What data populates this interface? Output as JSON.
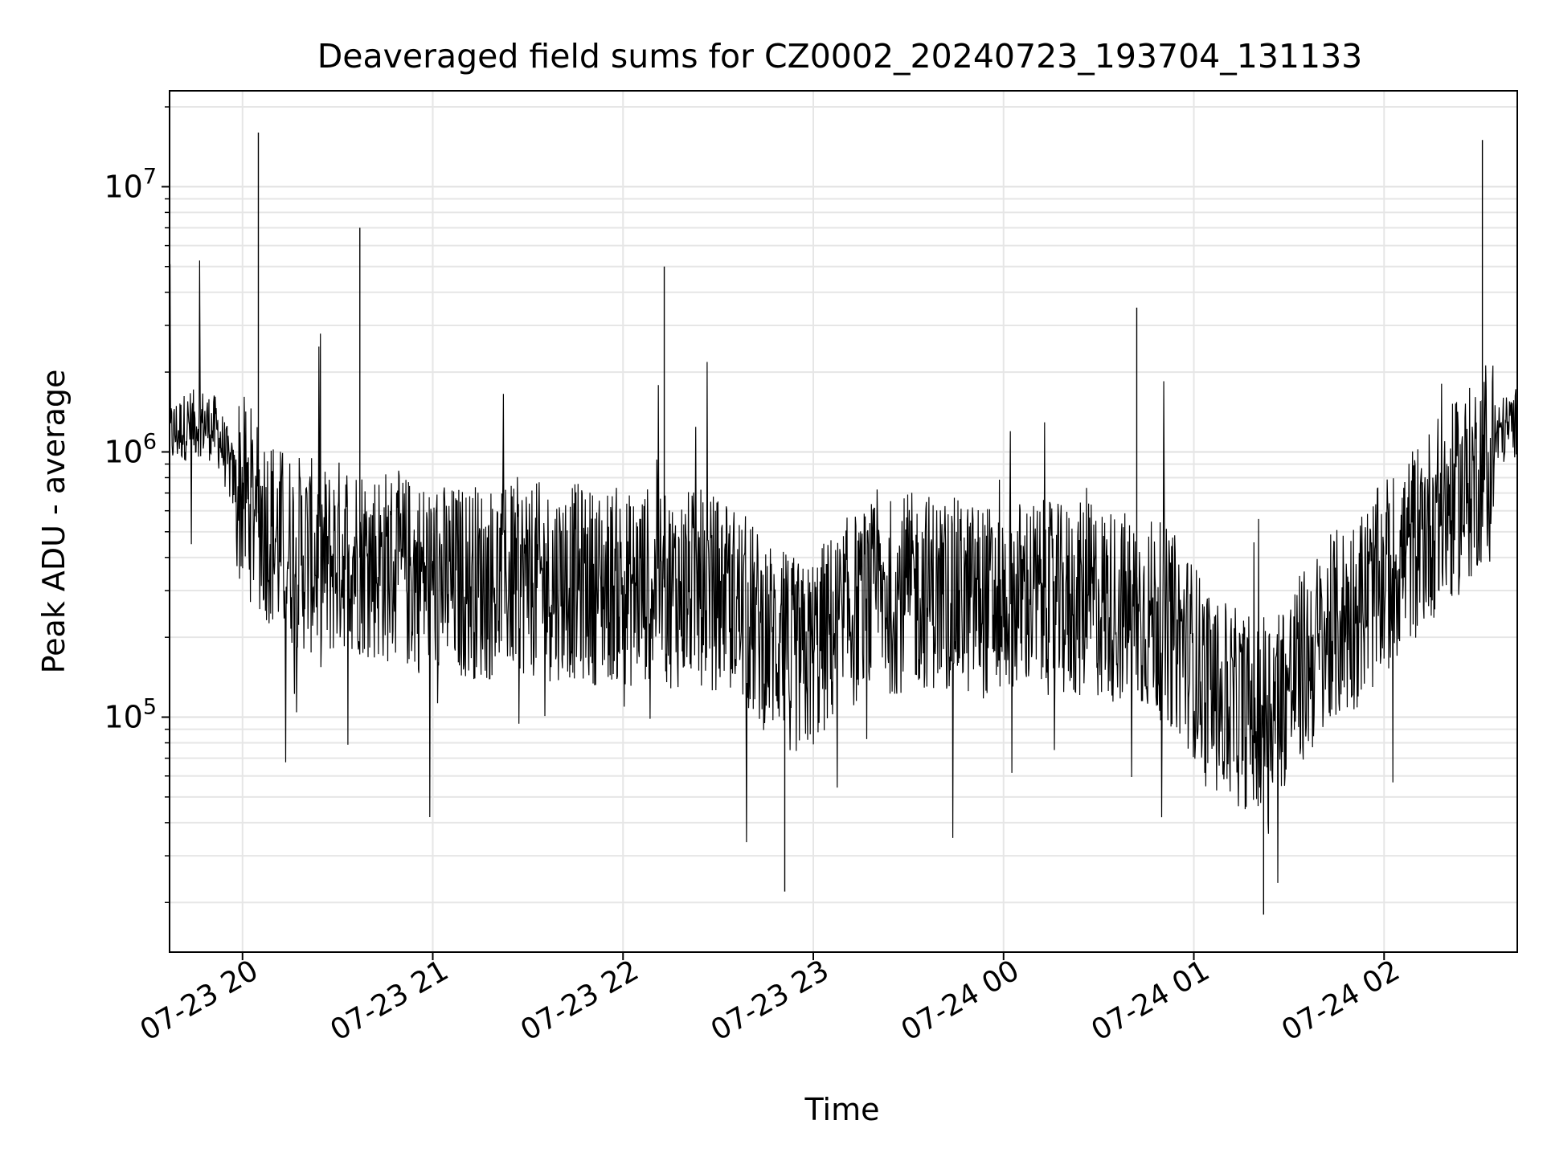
{
  "chart_data": {
    "type": "line",
    "title": "Deaveraged field sums for CZ0002_20240723_193704_131133",
    "xlabel": "Time",
    "ylabel": "Peak ADU - average",
    "xlim": [
      "2024-07-23 19:37",
      "2024-07-24 02:42"
    ],
    "ylim": [
      13000,
      23000000
    ],
    "y_scale": "log",
    "grid": true,
    "x_ticks": [
      {
        "value": "2024-07-23 20:00",
        "label": "07-23 20"
      },
      {
        "value": "2024-07-23 21:00",
        "label": "07-23 21"
      },
      {
        "value": "2024-07-23 22:00",
        "label": "07-23 22"
      },
      {
        "value": "2024-07-23 23:00",
        "label": "07-23 23"
      },
      {
        "value": "2024-07-24 00:00",
        "label": "07-24 00"
      },
      {
        "value": "2024-07-24 01:00",
        "label": "07-24 01"
      },
      {
        "value": "2024-07-24 02:00",
        "label": "07-24 02"
      }
    ],
    "y_ticks": [
      {
        "value": 100000,
        "base": "10",
        "exp": "5"
      },
      {
        "value": 1000000,
        "base": "10",
        "exp": "6"
      },
      {
        "value": 10000000,
        "base": "10",
        "exp": "7"
      }
    ],
    "series": [
      {
        "color": "#000000",
        "points": [
          [
            "2024-07-23 19:37",
            1150000
          ],
          [
            "2024-07-23 19:42",
            1250000
          ],
          [
            "2024-07-23 19:47",
            1300000
          ],
          [
            "2024-07-23 19:52",
            1200000
          ],
          [
            "2024-07-23 19:57",
            800000
          ],
          [
            "2024-07-23 20:02",
            650000
          ],
          [
            "2024-07-23 20:07",
            550000
          ],
          [
            "2024-07-23 20:12",
            450000
          ],
          [
            "2024-07-23 20:17",
            420000
          ],
          [
            "2024-07-23 20:22",
            400000
          ],
          [
            "2024-07-23 20:27",
            380000
          ],
          [
            "2024-07-23 20:32",
            420000
          ],
          [
            "2024-07-23 20:37",
            400000
          ],
          [
            "2024-07-23 20:42",
            380000
          ],
          [
            "2024-07-23 20:47",
            370000
          ],
          [
            "2024-07-23 20:52",
            350000
          ],
          [
            "2024-07-23 20:57",
            340000
          ],
          [
            "2024-07-23 21:02",
            330000
          ],
          [
            "2024-07-23 21:07",
            320000
          ],
          [
            "2024-07-23 21:12",
            330000
          ],
          [
            "2024-07-23 21:17",
            320000
          ],
          [
            "2024-07-23 21:22",
            330000
          ],
          [
            "2024-07-23 21:27",
            340000
          ],
          [
            "2024-07-23 21:32",
            330000
          ],
          [
            "2024-07-23 21:37",
            320000
          ],
          [
            "2024-07-23 21:42",
            330000
          ],
          [
            "2024-07-23 21:47",
            320000
          ],
          [
            "2024-07-23 21:52",
            310000
          ],
          [
            "2024-07-23 21:57",
            320000
          ],
          [
            "2024-07-23 22:02",
            300000
          ],
          [
            "2024-07-23 22:07",
            320000
          ],
          [
            "2024-07-23 22:12",
            310000
          ],
          [
            "2024-07-23 22:17",
            300000
          ],
          [
            "2024-07-23 22:22",
            310000
          ],
          [
            "2024-07-23 22:27",
            300000
          ],
          [
            "2024-07-23 22:32",
            290000
          ],
          [
            "2024-07-23 22:37",
            260000
          ],
          [
            "2024-07-23 22:42",
            220000
          ],
          [
            "2024-07-23 22:47",
            200000
          ],
          [
            "2024-07-23 22:52",
            180000
          ],
          [
            "2024-07-23 22:57",
            160000
          ],
          [
            "2024-07-23 23:02",
            190000
          ],
          [
            "2024-07-23 23:07",
            220000
          ],
          [
            "2024-07-23 23:12",
            250000
          ],
          [
            "2024-07-23 23:17",
            270000
          ],
          [
            "2024-07-23 23:22",
            280000
          ],
          [
            "2024-07-23 23:27",
            290000
          ],
          [
            "2024-07-23 23:32",
            300000
          ],
          [
            "2024-07-23 23:37",
            300000
          ],
          [
            "2024-07-23 23:42",
            290000
          ],
          [
            "2024-07-23 23:47",
            280000
          ],
          [
            "2024-07-23 23:52",
            280000
          ],
          [
            "2024-07-23 23:57",
            270000
          ],
          [
            "2024-07-24 00:02",
            280000
          ],
          [
            "2024-07-24 00:07",
            290000
          ],
          [
            "2024-07-24 00:12",
            280000
          ],
          [
            "2024-07-24 00:17",
            270000
          ],
          [
            "2024-07-24 00:22",
            270000
          ],
          [
            "2024-07-24 00:27",
            280000
          ],
          [
            "2024-07-24 00:32",
            270000
          ],
          [
            "2024-07-24 00:37",
            260000
          ],
          [
            "2024-07-24 00:42",
            250000
          ],
          [
            "2024-07-24 00:47",
            240000
          ],
          [
            "2024-07-24 00:52",
            220000
          ],
          [
            "2024-07-24 00:57",
            190000
          ],
          [
            "2024-07-24 01:02",
            150000
          ],
          [
            "2024-07-24 01:07",
            120000
          ],
          [
            "2024-07-24 01:12",
            110000
          ],
          [
            "2024-07-24 01:17",
            105000
          ],
          [
            "2024-07-24 01:22",
            110000
          ],
          [
            "2024-07-24 01:27",
            120000
          ],
          [
            "2024-07-24 01:32",
            140000
          ],
          [
            "2024-07-24 01:37",
            170000
          ],
          [
            "2024-07-24 01:42",
            200000
          ],
          [
            "2024-07-24 01:47",
            230000
          ],
          [
            "2024-07-24 01:52",
            260000
          ],
          [
            "2024-07-24 01:57",
            300000
          ],
          [
            "2024-07-24 02:02",
            350000
          ],
          [
            "2024-07-24 02:07",
            420000
          ],
          [
            "2024-07-24 02:12",
            500000
          ],
          [
            "2024-07-24 02:17",
            580000
          ],
          [
            "2024-07-24 02:22",
            650000
          ],
          [
            "2024-07-24 02:27",
            750000
          ],
          [
            "2024-07-24 02:32",
            950000
          ],
          [
            "2024-07-24 02:37",
            1200000
          ],
          [
            "2024-07-24 02:42",
            1300000
          ]
        ]
      }
    ],
    "annotations": [
      {
        "x": "2024-07-23 20:05",
        "y": 16000000
      },
      {
        "x": "2024-07-23 20:37",
        "y": 7000000
      },
      {
        "x": "2024-07-23 22:13",
        "y": 5000000
      },
      {
        "x": "2024-07-24 00:42",
        "y": 3500000
      },
      {
        "x": "2024-07-24 02:31",
        "y": 15000000
      },
      {
        "x": "2024-07-23 22:51",
        "y": 22000
      },
      {
        "x": "2024-07-24 01:22",
        "y": 18000
      }
    ]
  }
}
